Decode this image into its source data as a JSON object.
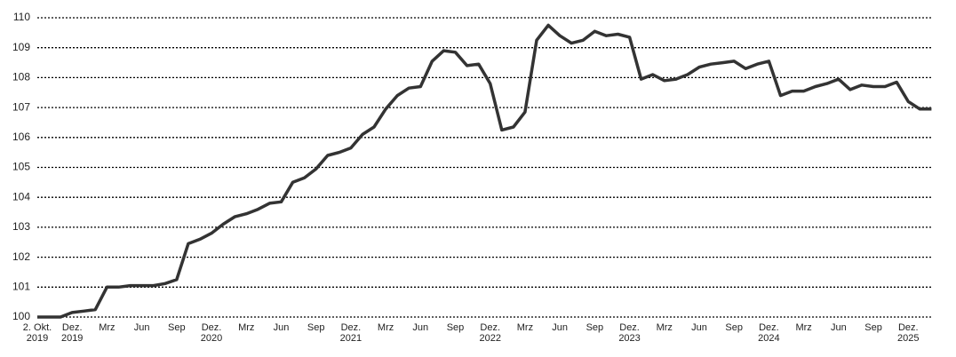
{
  "chart_data": {
    "type": "line",
    "categories": [
      "2. Okt. 2019",
      null,
      null,
      "Dez. 2019",
      null,
      null,
      "Mrz",
      null,
      null,
      "Jun",
      null,
      null,
      "Sep",
      null,
      null,
      "Dez. 2020",
      null,
      null,
      "Mrz",
      null,
      null,
      "Jun",
      null,
      null,
      "Sep",
      null,
      null,
      "Dez. 2021",
      null,
      null,
      "Mrz",
      null,
      null,
      "Jun",
      null,
      null,
      "Sep",
      null,
      null,
      "Dez. 2022",
      null,
      null,
      "Mrz",
      null,
      null,
      "Jun",
      null,
      null,
      "Sep",
      null,
      null,
      "Dez. 2023",
      null,
      null,
      "Mrz",
      null,
      null,
      "Jun",
      null,
      null,
      "Sep",
      null,
      null,
      "Dez. 2024",
      null,
      null,
      "Mrz",
      null,
      null,
      "Jun",
      null,
      null,
      "Sep",
      null,
      null,
      "Dez. 2025",
      null,
      null
    ],
    "values": [
      100,
      100,
      100,
      100.15,
      100.2,
      100.25,
      101.0,
      101.0,
      101.05,
      101.05,
      101.05,
      101.12,
      101.25,
      102.45,
      102.6,
      102.8,
      103.1,
      103.35,
      103.45,
      103.6,
      103.8,
      103.85,
      104.5,
      104.65,
      104.95,
      105.4,
      105.5,
      105.65,
      106.1,
      106.35,
      106.95,
      107.4,
      107.65,
      107.7,
      108.55,
      108.9,
      108.85,
      108.4,
      108.45,
      107.8,
      106.25,
      106.35,
      106.85,
      109.25,
      109.75,
      109.4,
      109.15,
      109.25,
      109.55,
      109.4,
      109.45,
      109.35,
      107.95,
      108.1,
      107.9,
      107.95,
      108.1,
      108.35,
      108.45,
      108.5,
      108.55,
      108.3,
      108.45,
      108.55,
      107.4,
      107.55,
      107.55,
      107.7,
      107.8,
      107.95,
      107.6,
      107.75,
      107.7,
      107.7,
      107.85,
      107.2,
      106.95,
      106.95
    ],
    "color": "#333333",
    "ylim": [
      100,
      110
    ],
    "yticks": [
      100,
      101,
      102,
      103,
      104,
      105,
      106,
      107,
      108,
      109,
      110
    ],
    "grid": true
  }
}
